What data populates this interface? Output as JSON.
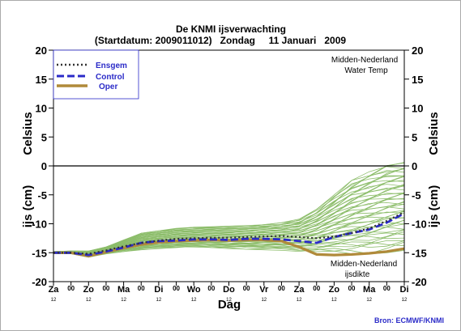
{
  "chart_data": {
    "type": "line",
    "title": "De KNMI ijsverwachting",
    "subtitle": "(Startdatum: 2009011012)   Zondag     11 Januari   2009",
    "xlabel": "Dag",
    "ylabel_top": "Celsius",
    "ylabel_bottom": "ijs (cm)",
    "ylim": [
      -20,
      20
    ],
    "yticks": [
      20,
      15,
      10,
      5,
      0,
      -5,
      -10,
      -15,
      -20
    ],
    "y_right_ticks": [
      20,
      15,
      10,
      5,
      0,
      -5,
      -10,
      -15,
      -20
    ],
    "x_ticks": [
      "Za",
      "00",
      "Zo",
      "00",
      "Ma",
      "00",
      "Di",
      "00",
      "Wo",
      "00",
      "Do",
      "00",
      "Vr",
      "00",
      "Za",
      "00",
      "Zo",
      "00",
      "Ma",
      "00",
      "Di"
    ],
    "x_sub_ticks": [
      "12",
      "12",
      "12",
      "12",
      "12",
      "12",
      "12",
      "12",
      "12",
      "12",
      "12"
    ],
    "grid": false,
    "legend_position": "top-left",
    "annotation_top_right": [
      "Midden-Nederland",
      "Water Temp"
    ],
    "annotation_bottom_right": [
      "Midden-Nederland",
      "ijsdikte"
    ],
    "source": "Bron: ECMWF/KNMI",
    "zero_line": 0,
    "x": [
      0,
      1,
      2,
      3,
      4,
      5,
      6,
      7,
      8,
      9,
      10,
      11,
      12,
      13,
      14,
      15,
      16,
      17,
      18,
      19,
      20
    ],
    "series": [
      {
        "name": "Ensgem",
        "style": "dotted",
        "color": "#333333",
        "values": [
          -15.0,
          -15.0,
          -15.2,
          -14.6,
          -13.9,
          -13.3,
          -12.9,
          -12.6,
          -12.5,
          -12.4,
          -12.4,
          -12.3,
          -12.2,
          -12.1,
          -12.3,
          -12.5,
          -12.2,
          -11.6,
          -10.8,
          -9.5,
          -8.0
        ]
      },
      {
        "name": "Control",
        "style": "dashed",
        "color": "#2b2bc8",
        "values": [
          -15.0,
          -15.0,
          -15.4,
          -14.8,
          -14.1,
          -13.3,
          -13.0,
          -12.9,
          -12.7,
          -12.7,
          -12.8,
          -12.6,
          -12.6,
          -12.7,
          -13.0,
          -13.3,
          -12.3,
          -11.6,
          -11.0,
          -9.8,
          -8.2
        ]
      },
      {
        "name": "Oper",
        "style": "solid",
        "color": "#b08a3a",
        "values": [
          -15.0,
          -15.0,
          -15.6,
          -14.9,
          -14.2,
          -13.6,
          -13.2,
          -13.0,
          -12.9,
          -12.8,
          -12.9,
          -12.8,
          -12.8,
          -13.0,
          -14.0,
          -15.3,
          -15.4,
          -15.3,
          -15.1,
          -14.8,
          -14.3
        ]
      }
    ],
    "ensemble_color": "#8cbd6a",
    "ensemble_spread": {
      "low": [
        -15.2,
        -15.2,
        -15.8,
        -15.2,
        -14.8,
        -14.5,
        -14.3,
        -14.2,
        -14.1,
        -14.2,
        -14.3,
        -14.4,
        -14.5,
        -14.6,
        -14.9,
        -15.0,
        -15.0,
        -15.2,
        -15.2,
        -15.0,
        -14.6
      ],
      "high": [
        -14.8,
        -14.7,
        -14.7,
        -14.0,
        -12.8,
        -11.6,
        -11.2,
        -10.8,
        -10.6,
        -10.5,
        -10.4,
        -10.3,
        -10.1,
        -9.8,
        -9.2,
        -7.5,
        -5.0,
        -2.5,
        -1.0,
        0.2,
        0.6
      ]
    }
  }
}
